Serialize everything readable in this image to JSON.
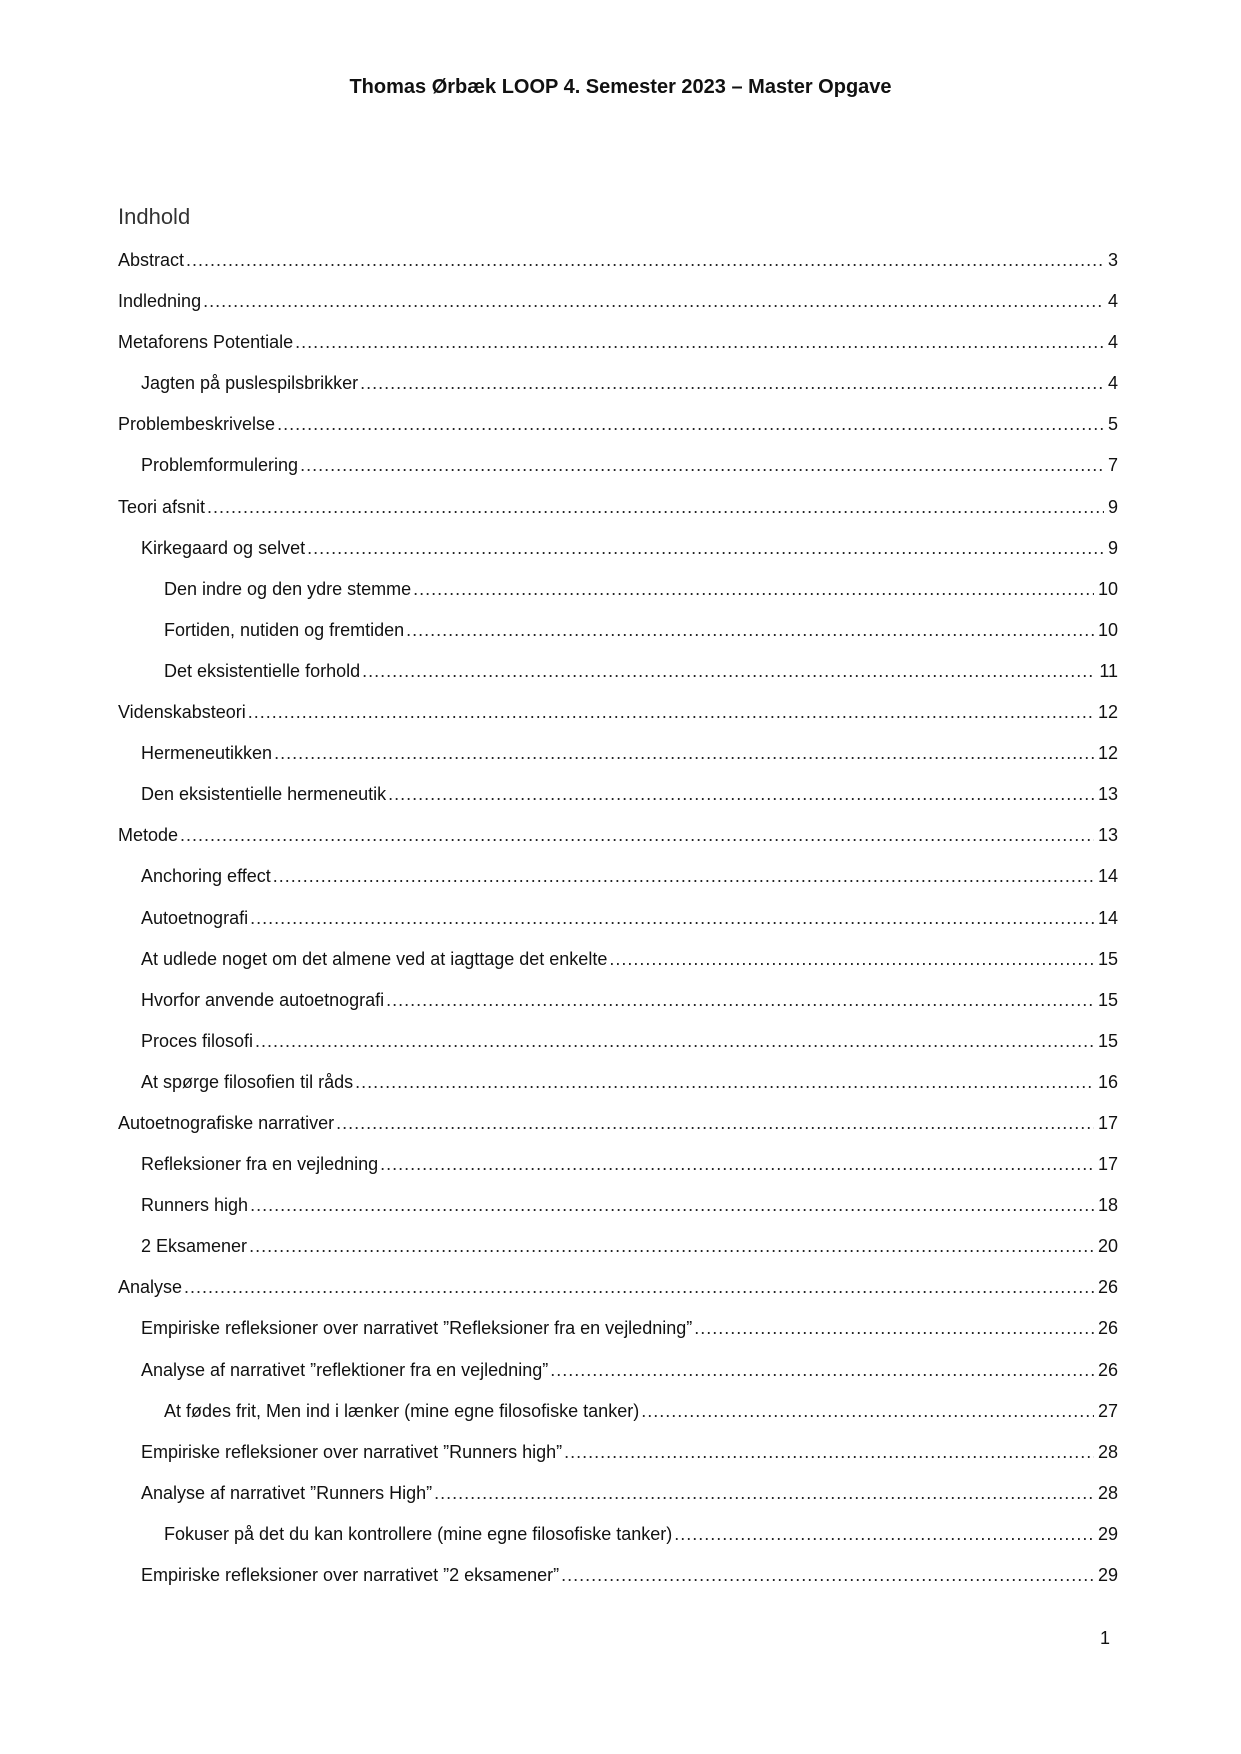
{
  "header": {
    "title": "Thomas Ørbæk LOOP 4. Semester 2023 – Master Opgave"
  },
  "toc": {
    "heading": "Indhold",
    "entries": [
      {
        "label": "Abstract",
        "page": "3",
        "level": 1
      },
      {
        "label": "Indledning",
        "page": "4",
        "level": 1
      },
      {
        "label": "Metaforens Potentiale",
        "page": "4",
        "level": 1
      },
      {
        "label": "Jagten på puslespilsbrikker",
        "page": "4",
        "level": 2
      },
      {
        "label": "Problembeskrivelse",
        "page": "5",
        "level": 1
      },
      {
        "label": "Problemformulering",
        "page": "7",
        "level": 2
      },
      {
        "label": "Teori afsnit",
        "page": "9",
        "level": 1
      },
      {
        "label": "Kirkegaard og selvet",
        "page": "9",
        "level": 2
      },
      {
        "label": "Den indre og den ydre stemme",
        "page": "10",
        "level": 3
      },
      {
        "label": "Fortiden, nutiden og fremtiden",
        "page": "10",
        "level": 3
      },
      {
        "label": "Det eksistentielle forhold",
        "page": "11",
        "level": 3
      },
      {
        "label": "Videnskabsteori",
        "page": "12",
        "level": 1
      },
      {
        "label": "Hermeneutikken",
        "page": "12",
        "level": 2
      },
      {
        "label": "Den eksistentielle hermeneutik",
        "page": "13",
        "level": 2
      },
      {
        "label": "Metode",
        "page": "13",
        "level": 1
      },
      {
        "label": "Anchoring effect",
        "page": "14",
        "level": 2
      },
      {
        "label": "Autoetnografi",
        "page": "14",
        "level": 2
      },
      {
        "label": "At udlede noget om det almene ved at iagttage det enkelte",
        "page": "15",
        "level": 2
      },
      {
        "label": "Hvorfor anvende autoetnografi",
        "page": "15",
        "level": 2
      },
      {
        "label": "Proces filosofi",
        "page": "15",
        "level": 2
      },
      {
        "label": "At spørge filosofien til råds",
        "page": "16",
        "level": 2
      },
      {
        "label": "Autoetnografiske narrativer",
        "page": "17",
        "level": 1
      },
      {
        "label": "Refleksioner fra en vejledning",
        "page": "17",
        "level": 2
      },
      {
        "label": "Runners high",
        "page": "18",
        "level": 2
      },
      {
        "label": "2 Eksamener",
        "page": "20",
        "level": 2
      },
      {
        "label": "Analyse",
        "page": "26",
        "level": 1
      },
      {
        "label": "Empiriske refleksioner over narrativet ”Refleksioner fra en vejledning”",
        "page": "26",
        "level": 2
      },
      {
        "label": "Analyse af narrativet ”reflektioner fra en vejledning”",
        "page": "26",
        "level": 2
      },
      {
        "label": "At fødes frit, Men ind i lænker (mine egne filosofiske tanker)",
        "page": "27",
        "level": 3
      },
      {
        "label": "Empiriske refleksioner over narrativet ”Runners high”",
        "page": "28",
        "level": 2
      },
      {
        "label": "Analyse af narrativet ”Runners High”",
        "page": "28",
        "level": 2
      },
      {
        "label": "Fokuser på det du kan kontrollere (mine egne filosofiske tanker)",
        "page": "29",
        "level": 3
      },
      {
        "label": "Empiriske refleksioner over narrativet ”2 eksamener”",
        "page": "29",
        "level": 2
      }
    ]
  },
  "footer": {
    "page_number": "1"
  }
}
